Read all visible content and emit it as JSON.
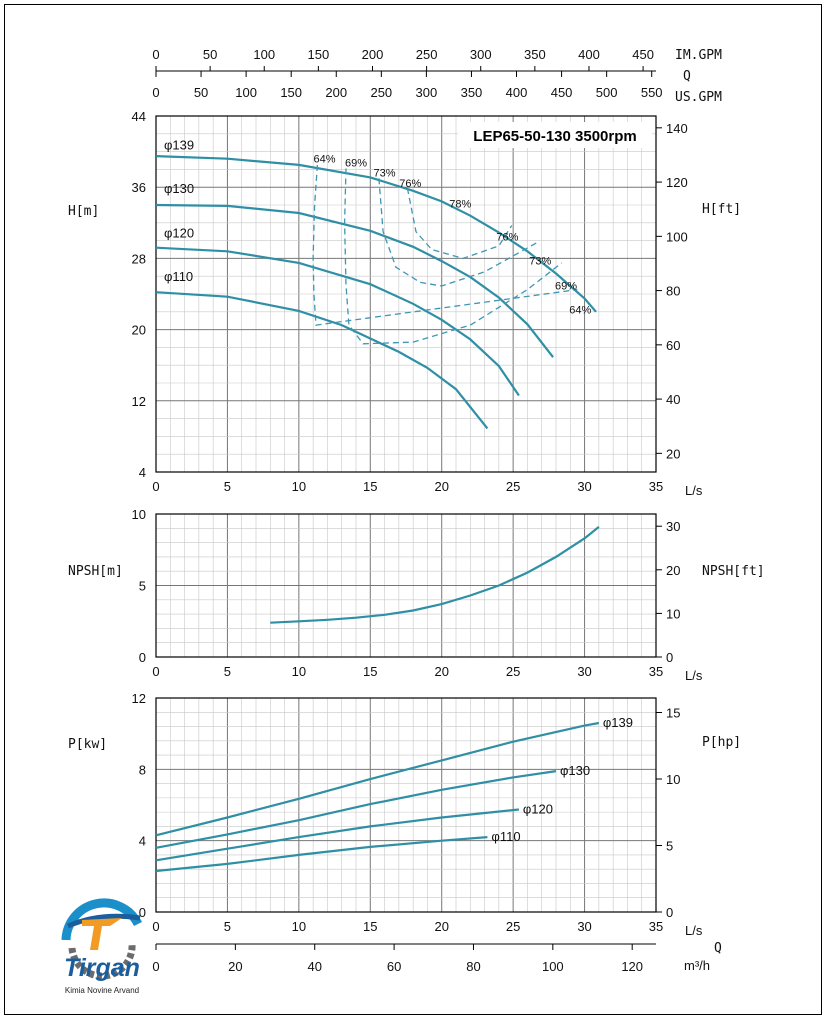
{
  "colors": {
    "curve": "#2f8fa5",
    "efficiency": "#3d97b3",
    "grid_minor": "#c8c8c8",
    "grid_major": "#777777"
  },
  "chart_data": [
    {
      "type": "line",
      "title": "LEP65-50-130 3500rpm",
      "xlabel": "L/s",
      "ylabel": "H[m]",
      "y2label": "H[ft]",
      "xlim": [
        0,
        35
      ],
      "ylim": [
        4,
        44
      ],
      "y2lim": [
        13.12,
        144.36
      ],
      "x_ticks": [
        0,
        5,
        10,
        15,
        20,
        25,
        30,
        35
      ],
      "y_ticks": [
        4,
        12,
        20,
        28,
        36,
        44
      ],
      "y2_ticks": [
        20,
        40,
        60,
        80,
        100,
        120,
        140
      ],
      "top_axes": [
        {
          "label": "IM.GPM",
          "ticks": [
            0,
            50,
            100,
            150,
            200,
            250,
            300,
            350,
            400,
            450
          ],
          "lps_per_unit": 0.07577
        },
        {
          "label": "US.GPM",
          "ticks": [
            0,
            50,
            100,
            150,
            200,
            250,
            300,
            350,
            400,
            450,
            500,
            550
          ],
          "lps_per_unit": 0.06309
        }
      ],
      "top_axis_name": "Q",
      "series": [
        {
          "name": "φ139",
          "x": [
            0,
            5,
            10,
            15,
            18,
            20,
            22,
            24,
            26,
            28,
            30,
            30.8
          ],
          "y": [
            39.5,
            39.2,
            38.5,
            37.1,
            35.6,
            34.4,
            32.8,
            30.9,
            28.8,
            26.3,
            23.5,
            22
          ]
        },
        {
          "name": "φ130",
          "x": [
            0,
            5,
            10,
            15,
            18,
            20,
            22,
            24,
            26,
            27.8
          ],
          "y": [
            34,
            33.9,
            33.1,
            31.1,
            29.3,
            27.7,
            25.9,
            23.6,
            20.6,
            16.9
          ]
        },
        {
          "name": "φ120",
          "x": [
            0,
            5,
            10,
            15,
            18,
            20,
            22,
            24,
            25.4
          ],
          "y": [
            29.2,
            28.8,
            27.5,
            25.1,
            22.9,
            21.1,
            18.9,
            15.9,
            12.6
          ]
        },
        {
          "name": "φ110",
          "x": [
            0,
            5,
            10,
            13,
            15,
            17,
            19,
            21,
            23.2
          ],
          "y": [
            24.2,
            23.7,
            22.1,
            20.5,
            19.0,
            17.5,
            15.7,
            13.3,
            8.9
          ]
        }
      ],
      "efficiency_curves": [
        {
          "name": "64%",
          "x": [
            11.3,
            11.1,
            11.0,
            11.05,
            11.2,
            29.5
          ],
          "y": [
            38.5,
            34,
            28,
            24,
            20.5,
            24.5
          ]
        },
        {
          "name": "69%",
          "x": [
            13.3,
            13.2,
            13.3,
            13.5,
            14.5,
            18,
            22,
            26,
            28.4
          ],
          "y": [
            38.1,
            32,
            25,
            20.5,
            18.4,
            18.6,
            20.5,
            24.5,
            27.5
          ]
        },
        {
          "name": "73%",
          "x": [
            15.6,
            15.9,
            16.8,
            18.5,
            20,
            23,
            26.7
          ],
          "y": [
            37.0,
            31,
            27,
            25.3,
            24.9,
            26.5,
            29.8
          ]
        },
        {
          "name": "76%",
          "x": [
            17.6,
            18.2,
            19.3,
            21.5,
            24,
            24.9
          ],
          "y": [
            35.9,
            31,
            29,
            28,
            29.4,
            31.7
          ]
        }
      ],
      "annotations": [
        "64%",
        "69%",
        "73%",
        "76%",
        "78%",
        "76%",
        "73%",
        "69%",
        "64%"
      ]
    },
    {
      "type": "line",
      "xlabel": "L/s",
      "ylabel": "NPSH[m]",
      "y2label": "NPSH[ft]",
      "xlim": [
        0,
        35
      ],
      "ylim": [
        0,
        10
      ],
      "y2lim": [
        0,
        32.8
      ],
      "x_ticks": [
        0,
        5,
        10,
        15,
        20,
        25,
        30,
        35
      ],
      "y_ticks": [
        0,
        5,
        10
      ],
      "y2_ticks": [
        0,
        10,
        20,
        30
      ],
      "series": [
        {
          "x": [
            8,
            10,
            12,
            14,
            16,
            18,
            20,
            22,
            24,
            26,
            28,
            30,
            31
          ],
          "y": [
            2.4,
            2.5,
            2.6,
            2.75,
            2.95,
            3.25,
            3.7,
            4.3,
            5.0,
            5.9,
            7.0,
            8.3,
            9.1
          ]
        }
      ]
    },
    {
      "type": "line",
      "xlabel": "L/s",
      "ylabel": "P[kw]",
      "y2label": "P[hp]",
      "xlim": [
        0,
        35
      ],
      "ylim": [
        0,
        12
      ],
      "y2lim": [
        0,
        16.09
      ],
      "x_ticks": [
        0,
        5,
        10,
        15,
        20,
        25,
        30,
        35
      ],
      "y_ticks": [
        0,
        4,
        8,
        12
      ],
      "y2_ticks": [
        0,
        5,
        10,
        15
      ],
      "bottom_axis": {
        "label": "m³/h",
        "ticks": [
          0,
          20,
          40,
          60,
          80,
          100,
          120
        ],
        "lps_per_unit": 0.27778
      },
      "bottom_axis_name": "Q",
      "series": [
        {
          "name": "φ139",
          "x": [
            0,
            5,
            10,
            15,
            20,
            25,
            30,
            31
          ],
          "y": [
            4.3,
            5.3,
            6.35,
            7.45,
            8.5,
            9.55,
            10.45,
            10.6
          ]
        },
        {
          "name": "φ130",
          "x": [
            0,
            5,
            10,
            15,
            20,
            25,
            28
          ],
          "y": [
            3.6,
            4.35,
            5.15,
            6.05,
            6.85,
            7.55,
            7.9
          ]
        },
        {
          "name": "φ120",
          "x": [
            0,
            5,
            10,
            15,
            20,
            25.4
          ],
          "y": [
            2.9,
            3.55,
            4.2,
            4.8,
            5.3,
            5.75
          ]
        },
        {
          "name": "φ110",
          "x": [
            0,
            5,
            10,
            15,
            20,
            23.2
          ],
          "y": [
            2.3,
            2.7,
            3.2,
            3.65,
            4.0,
            4.2
          ]
        }
      ]
    }
  ],
  "logo": {
    "brand": "Tirgan",
    "tagline": "Kimia Novine Arvand"
  }
}
